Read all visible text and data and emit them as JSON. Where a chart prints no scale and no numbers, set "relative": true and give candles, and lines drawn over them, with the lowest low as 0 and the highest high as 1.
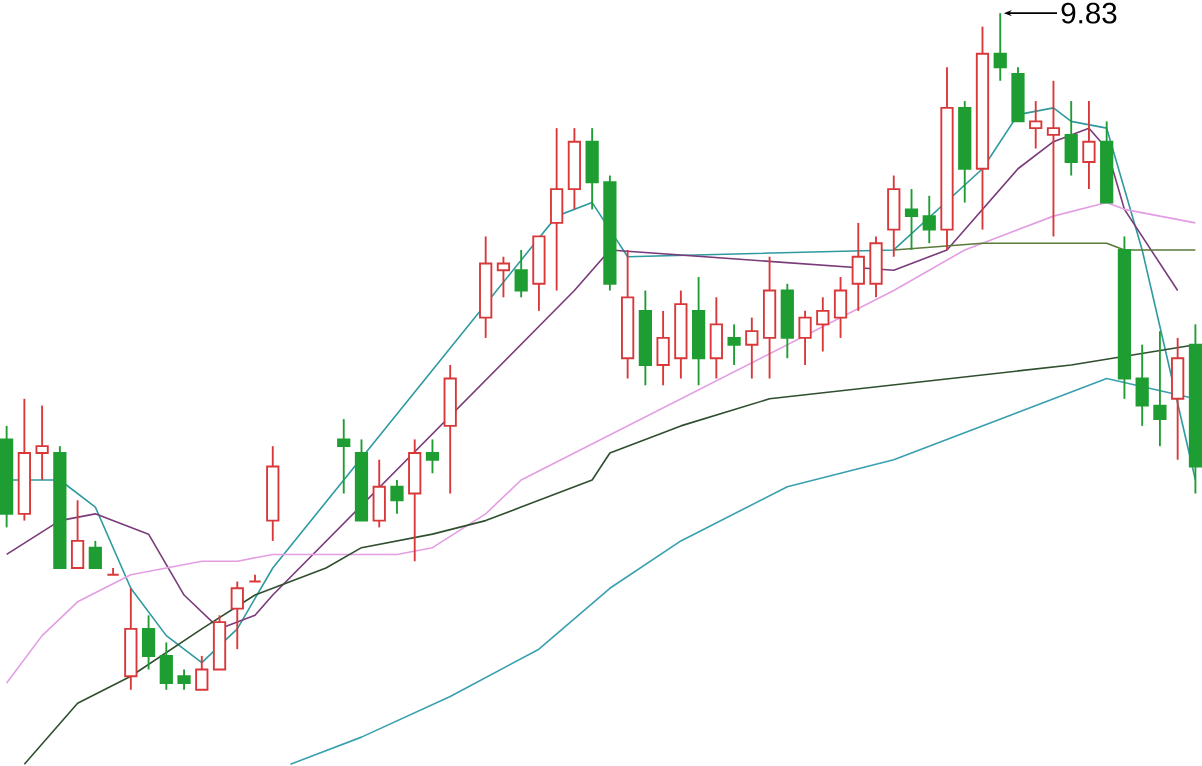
{
  "chart_data": {
    "type": "candlestick",
    "relative": true,
    "categories": [
      null,
      null,
      null,
      null,
      null,
      null,
      null,
      null,
      null,
      null,
      null,
      null,
      null,
      null,
      null,
      null,
      null,
      null,
      null,
      null,
      null,
      null,
      null,
      null,
      null,
      null,
      null,
      null,
      null,
      null,
      null,
      null,
      null,
      null,
      null,
      null,
      null,
      null,
      null,
      null,
      null,
      null,
      null,
      null,
      null,
      null,
      null,
      null,
      null,
      null,
      null,
      null,
      null,
      null,
      null,
      null,
      null,
      null,
      null,
      null,
      null,
      null,
      null,
      null,
      null,
      null,
      null,
      null
    ],
    "ohlc": [
      [
        0.37,
        0.39,
        0.24,
        0.26
      ],
      [
        0.26,
        0.43,
        0.25,
        0.35
      ],
      [
        0.35,
        0.42,
        0.31,
        0.36
      ],
      [
        0.35,
        0.36,
        0.18,
        0.18
      ],
      [
        0.18,
        0.28,
        0.18,
        0.22
      ],
      [
        0.21,
        0.22,
        0.18,
        0.18
      ],
      [
        0.17,
        0.18,
        0.17,
        0.17
      ],
      [
        0.02,
        0.15,
        0,
        0.09
      ],
      [
        0.09,
        0.11,
        0.03,
        0.05
      ],
      [
        0.05,
        0.07,
        0,
        0.01
      ],
      [
        0.02,
        0.03,
        0,
        0.01
      ],
      [
        0,
        0.05,
        0,
        0.03
      ],
      [
        0.03,
        0.11,
        0.03,
        0.1
      ],
      [
        0.12,
        0.16,
        0.06,
        0.15
      ],
      [
        0.16,
        0.17,
        0.16,
        0.16
      ],
      [
        0.25,
        0.36,
        0.22,
        0.33
      ],
      null,
      null,
      null,
      [
        0.37,
        0.4,
        0.29,
        0.36
      ],
      [
        0.35,
        0.37,
        0.25,
        0.25
      ],
      [
        0.25,
        0.34,
        0.24,
        0.3
      ],
      [
        0.3,
        0.31,
        0.26,
        0.28
      ],
      [
        0.29,
        0.37,
        0.19,
        0.35
      ],
      [
        0.35,
        0.37,
        0.32,
        0.34
      ],
      [
        0.39,
        0.48,
        0.29,
        0.46
      ],
      null,
      [
        0.55,
        0.67,
        0.52,
        0.63
      ],
      [
        0.62,
        0.64,
        0.58,
        0.63
      ],
      [
        0.62,
        0.65,
        0.58,
        0.59
      ],
      [
        0.6,
        0.67,
        0.56,
        0.67
      ],
      [
        0.69,
        0.83,
        0.59,
        0.74
      ],
      [
        0.74,
        0.83,
        0.71,
        0.81
      ],
      [
        0.81,
        0.83,
        0.71,
        0.75
      ],
      [
        0.75,
        0.76,
        0.59,
        0.6
      ],
      [
        0.49,
        0.65,
        0.46,
        0.58
      ],
      [
        0.56,
        0.59,
        0.45,
        0.48
      ],
      [
        0.48,
        0.56,
        0.45,
        0.52
      ],
      [
        0.49,
        0.59,
        0.46,
        0.57
      ],
      [
        0.56,
        0.61,
        0.45,
        0.49
      ],
      [
        0.49,
        0.58,
        0.46,
        0.54
      ],
      [
        0.52,
        0.54,
        0.48,
        0.51
      ],
      [
        0.51,
        0.55,
        0.46,
        0.53
      ],
      [
        0.52,
        0.64,
        0.46,
        0.59
      ],
      [
        0.59,
        0.6,
        0.49,
        0.52
      ],
      [
        0.52,
        0.56,
        0.48,
        0.55
      ],
      [
        0.54,
        0.58,
        0.5,
        0.56
      ],
      [
        0.55,
        0.61,
        0.52,
        0.59
      ],
      [
        0.6,
        0.69,
        0.56,
        0.64
      ],
      [
        0.6,
        0.67,
        0.58,
        0.66
      ],
      [
        0.68,
        0.76,
        0.64,
        0.74
      ],
      [
        0.71,
        0.74,
        0.65,
        0.7
      ],
      [
        0.7,
        0.73,
        0.66,
        0.68
      ],
      [
        0.68,
        0.92,
        0.65,
        0.86
      ],
      [
        0.86,
        0.87,
        0.72,
        0.77
      ],
      [
        0.77,
        0.98,
        0.68,
        0.94
      ],
      [
        0.94,
        1,
        0.9,
        0.92
      ],
      [
        0.91,
        0.92,
        0.84,
        0.84
      ],
      [
        0.83,
        0.87,
        0.8,
        0.84
      ],
      [
        0.82,
        0.9,
        0.67,
        0.83
      ],
      [
        0.82,
        0.87,
        0.76,
        0.78
      ],
      [
        0.78,
        0.87,
        0.74,
        0.81
      ],
      [
        0.81,
        0.84,
        0.72,
        0.72
      ],
      [
        0.65,
        0.67,
        0.43,
        0.46
      ],
      [
        0.46,
        0.51,
        0.39,
        0.42
      ],
      [
        0.42,
        0.53,
        0.36,
        0.4
      ],
      [
        0.43,
        0.52,
        0.34,
        0.49
      ],
      [
        0.51,
        0.54,
        0.29,
        0.33
      ]
    ],
    "colors": [
      "#1e9e32",
      "#d9383a",
      "#d9383a",
      "#1e9e32",
      "#d9383a",
      "#1e9e32",
      "#d9383a",
      "#d9383a",
      "#1e9e32",
      "#1e9e32",
      "#1e9e32",
      "#d9383a",
      "#d9383a",
      "#d9383a",
      "#d9383a",
      "#d9383a",
      null,
      null,
      null,
      "#1e9e32",
      "#1e9e32",
      "#d9383a",
      "#1e9e32",
      "#d9383a",
      "#1e9e32",
      "#d9383a",
      null,
      "#d9383a",
      "#d9383a",
      "#1e9e32",
      "#d9383a",
      "#d9383a",
      "#d9383a",
      "#1e9e32",
      "#1e9e32",
      "#d9383a",
      "#1e9e32",
      "#d9383a",
      "#d9383a",
      "#1e9e32",
      "#d9383a",
      "#1e9e32",
      "#d9383a",
      "#d9383a",
      "#1e9e32",
      "#d9383a",
      "#d9383a",
      "#d9383a",
      "#d9383a",
      "#d9383a",
      "#d9383a",
      "#1e9e32",
      "#1e9e32",
      "#d9383a",
      "#1e9e32",
      "#d9383a",
      "#1e9e32",
      "#1e9e32",
      "#d9383a",
      "#d9383a",
      "#1e9e32",
      "#d9383a",
      "#1e9e32",
      "#1e9e32",
      "#1e9e32",
      "#1e9e32",
      "#d9383a",
      "#1e9e32"
    ],
    "series": [
      {
        "type": "line",
        "color": "#2f9aa0",
        "values": [
          0.31,
          null,
          null,
          0.31,
          null,
          0.27,
          null,
          0.15,
          null,
          0.08,
          null,
          0.04,
          null,
          0.09,
          null,
          0.18,
          null,
          null,
          null,
          null,
          null,
          null,
          null,
          null,
          null,
          null,
          null,
          null,
          null,
          null,
          null,
          0.7,
          null,
          0.72,
          null,
          0.64,
          null,
          null,
          null,
          null,
          null,
          null,
          null,
          null,
          null,
          null,
          null,
          null,
          null,
          null,
          0.65,
          null,
          null,
          null,
          null,
          0.77,
          null,
          0.85,
          null,
          0.86,
          0.84,
          null,
          0.83,
          0.74,
          0.65,
          null,
          null,
          0.31
        ]
      },
      {
        "type": "line",
        "color": "#7a3b7a",
        "values": [
          0.2,
          null,
          null,
          0.25,
          null,
          0.26,
          null,
          null,
          0.23,
          null,
          0.14,
          null,
          0.09,
          null,
          0.11,
          0.14,
          null,
          null,
          null,
          null,
          null,
          null,
          null,
          null,
          null,
          null,
          null,
          null,
          null,
          null,
          null,
          null,
          0.59,
          null,
          0.65,
          null,
          null,
          null,
          null,
          null,
          null,
          null,
          null,
          null,
          null,
          null,
          null,
          null,
          null,
          null,
          0.62,
          null,
          null,
          0.65,
          null,
          null,
          null,
          0.77,
          null,
          0.81,
          null,
          0.83,
          0.8,
          0.71,
          null,
          null,
          0.59,
          null
        ]
      },
      {
        "type": "line",
        "color": "#e39ee3",
        "values": [
          0.01,
          null,
          0.08,
          null,
          0.13,
          null,
          null,
          0.17,
          null,
          0.18,
          null,
          0.19,
          null,
          0.19,
          null,
          0.2,
          null,
          null,
          null,
          null,
          0.2,
          null,
          0.2,
          null,
          0.21,
          null,
          null,
          0.26,
          null,
          0.31,
          null,
          null,
          null,
          null,
          null,
          null,
          null,
          null,
          null,
          null,
          null,
          null,
          null,
          null,
          null,
          null,
          null,
          null,
          null,
          null,
          0.59,
          null,
          null,
          null,
          0.65,
          null,
          null,
          null,
          null,
          0.7,
          null,
          null,
          0.72,
          0.71,
          null,
          null,
          null,
          0.69
        ]
      },
      {
        "type": "line",
        "color": "#2f4f2f",
        "values": [
          null,
          -0.11,
          null,
          null,
          -0.02,
          null,
          null,
          0.02,
          null,
          null,
          null,
          0.09,
          null,
          null,
          0.14,
          null,
          null,
          null,
          0.18,
          null,
          0.21,
          null,
          null,
          null,
          0.23,
          null,
          null,
          0.25,
          null,
          0.27,
          null,
          null,
          null,
          0.31,
          0.35,
          null,
          null,
          null,
          0.39,
          null,
          null,
          null,
          null,
          0.43,
          null,
          null,
          null,
          null,
          null,
          null,
          null,
          null,
          null,
          null,
          null,
          null,
          null,
          null,
          null,
          null,
          0.48,
          null,
          null,
          null,
          null,
          null,
          null,
          0.51
        ]
      },
      {
        "type": "line",
        "color": "#3aa0b0",
        "values": [
          null,
          null,
          null,
          null,
          null,
          null,
          null,
          null,
          null,
          null,
          null,
          null,
          null,
          null,
          null,
          null,
          -0.11,
          null,
          null,
          null,
          -0.07,
          null,
          null,
          null,
          null,
          -0.01,
          null,
          null,
          null,
          null,
          0.06,
          null,
          null,
          null,
          0.15,
          null,
          null,
          null,
          0.22,
          null,
          null,
          null,
          null,
          null,
          0.3,
          null,
          null,
          null,
          null,
          null,
          0.34,
          null,
          null,
          null,
          null,
          null,
          0.4,
          null,
          null,
          null,
          null,
          null,
          0.46,
          null,
          null,
          null,
          null,
          0.43
        ]
      },
      {
        "type": "line",
        "color": "#5a7a3a",
        "values": [
          null,
          null,
          null,
          null,
          null,
          null,
          null,
          null,
          null,
          null,
          null,
          null,
          null,
          null,
          null,
          null,
          null,
          null,
          null,
          null,
          null,
          null,
          null,
          null,
          null,
          null,
          null,
          null,
          null,
          null,
          null,
          null,
          null,
          null,
          null,
          null,
          null,
          null,
          null,
          null,
          null,
          null,
          null,
          null,
          null,
          null,
          null,
          null,
          null,
          null,
          0.65,
          null,
          null,
          null,
          null,
          0.66,
          null,
          null,
          null,
          0.66,
          null,
          null,
          0.66,
          0.65,
          null,
          null,
          null,
          0.65
        ]
      }
    ],
    "annotations": [
      "9.83"
    ]
  }
}
